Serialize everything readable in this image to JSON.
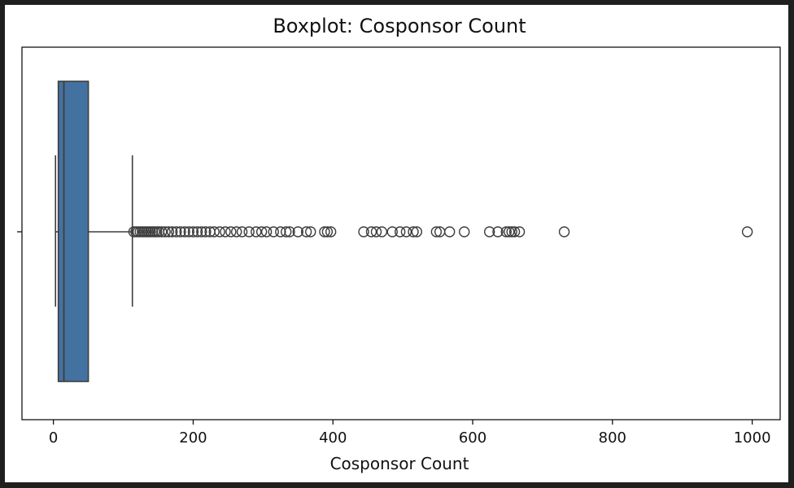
{
  "chart_data": {
    "type": "boxplot",
    "title": "Boxplot: Cosponsor Count",
    "xlabel": "Cosponsor Count",
    "ylabel": "",
    "xlim": [
      -45,
      1040
    ],
    "xticks": [
      0,
      200,
      400,
      600,
      800,
      1000
    ],
    "grid": false,
    "box": {
      "whisker_low": 3,
      "q1": 7,
      "median": 15,
      "q3": 50,
      "whisker_high": 113,
      "fill_color": "#4472a0",
      "line_color": "#3d3d3d"
    },
    "outliers": [
      115,
      118,
      121,
      124,
      127,
      130,
      133,
      136,
      139,
      142,
      145,
      148,
      151,
      155,
      160,
      165,
      170,
      176,
      182,
      188,
      194,
      200,
      206,
      212,
      218,
      224,
      230,
      238,
      246,
      254,
      262,
      270,
      280,
      290,
      298,
      305,
      315,
      325,
      333,
      338,
      350,
      362,
      368,
      388,
      392,
      397,
      444,
      455,
      462,
      470,
      485,
      496,
      505,
      515,
      520,
      548,
      553,
      567,
      588,
      624,
      636,
      648,
      652,
      656,
      660,
      667,
      731,
      993
    ]
  }
}
